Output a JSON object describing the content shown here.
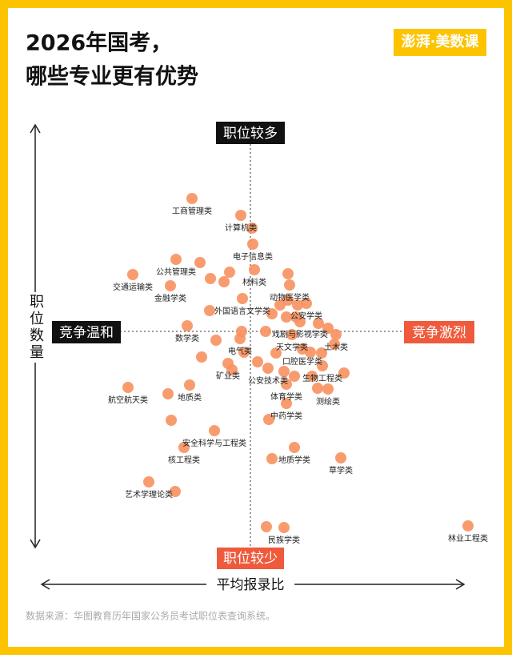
{
  "chart_data": {
    "type": "scatter",
    "title": [
      "2026年国考，",
      "哪些专业更有优势"
    ],
    "logo": "澎湃·美数课",
    "top_label": "职位较多",
    "bottom_label": "职位较少",
    "left_label": "竞争温和",
    "right_label": "竞争激烈",
    "y_axis_label": "职位数量",
    "x_axis_label": "平均报录比",
    "source": "数据来源：华图教育历年国家公务员考试职位表查询系统。",
    "xlim": [
      0,
      560
    ],
    "ylim": [
      0,
      480
    ],
    "series": [
      {
        "color": "#f7915f",
        "labels": [
          "工商管理类",
          "计算机类",
          "电子信息类",
          "公共管理类",
          "交通运输类",
          "材料类",
          "金融学类",
          "动物医学类",
          "外国语言文学类",
          "公安学类",
          "数学类",
          "戏剧与影视学类",
          "天文学类",
          "土木类",
          "电气类",
          "口腔医学类",
          "矿业类",
          "生物工程类",
          "公安技术类",
          "航空航天类",
          "地质类",
          "体育学类",
          "测绘类",
          "中药学类",
          "安全科学与工程类",
          "核工程类",
          "地质学类",
          "草学类",
          "艺术学理论类",
          "民族学类",
          "林业工程类",
          null,
          null,
          null,
          null,
          null,
          null,
          null,
          null,
          null,
          null,
          null,
          null,
          null,
          null,
          null,
          null,
          null,
          null,
          null,
          null,
          null,
          null,
          null,
          null,
          null,
          null,
          null,
          null,
          null,
          null,
          null,
          null,
          null,
          null,
          null,
          null,
          null
        ],
        "x": [
          200,
          261,
          276,
          180,
          126,
          278,
          173,
          322,
          263,
          343,
          194,
          335,
          325,
          380,
          260,
          338,
          245,
          363,
          295,
          120,
          197,
          318,
          370,
          318,
          228,
          190,
          328,
          386,
          146,
          315,
          545,
          275,
          210,
          223,
          240,
          247,
          320,
          320,
          332,
          310,
          300,
          318,
          370,
          358,
          378,
          292,
          262,
          230,
          265,
          282,
          305,
          348,
          362,
          390,
          328,
          350,
          315,
          212,
          170,
          174,
          296,
          179,
          300,
          293,
          250,
          357,
          330,
          222
        ],
        "values": [
          432,
          411,
          375,
          356,
          337,
          343,
          323,
          324,
          307,
          301,
          273,
          278,
          262,
          262,
          257,
          244,
          226,
          223,
          220,
          196,
          199,
          200,
          194,
          176,
          142,
          121,
          121,
          108,
          78,
          21,
          23,
          395,
          352,
          332,
          328,
          340,
          338,
          305,
          299,
          299,
          288,
          284,
          270,
          276,
          250,
          266,
          266,
          255,
          240,
          228,
          239,
          240,
          239,
          214,
          210,
          210,
          216,
          234,
          188,
          155,
          156,
          66,
          107,
          22,
          218,
          195,
          284,
          292
        ]
      }
    ]
  }
}
